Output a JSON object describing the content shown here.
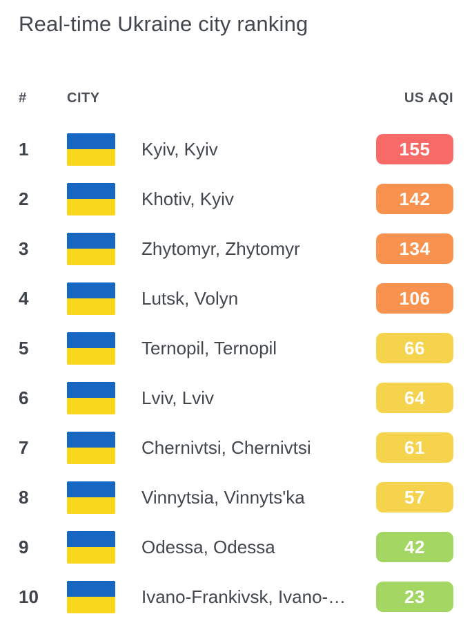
{
  "title": "Real-time Ukraine city ranking",
  "table": {
    "headers": {
      "rank": "#",
      "city": "CITY",
      "aqi": "US AQI"
    },
    "rows": [
      {
        "rank": "1",
        "city": "Kyiv, Kyiv",
        "aqi": "155",
        "level": "unhealthy"
      },
      {
        "rank": "2",
        "city": "Khotiv, Kyiv",
        "aqi": "142",
        "level": "usg"
      },
      {
        "rank": "3",
        "city": "Zhytomyr, Zhytomyr",
        "aqi": "134",
        "level": "usg"
      },
      {
        "rank": "4",
        "city": "Lutsk, Volyn",
        "aqi": "106",
        "level": "usg"
      },
      {
        "rank": "5",
        "city": "Ternopil, Ternopil",
        "aqi": "66",
        "level": "moderate"
      },
      {
        "rank": "6",
        "city": "Lviv, Lviv",
        "aqi": "64",
        "level": "moderate"
      },
      {
        "rank": "7",
        "city": "Chernivtsi, Chernivtsi",
        "aqi": "61",
        "level": "moderate"
      },
      {
        "rank": "8",
        "city": "Vinnytsia, Vinnyts'ka",
        "aqi": "57",
        "level": "moderate"
      },
      {
        "rank": "9",
        "city": "Odessa, Odessa",
        "aqi": "42",
        "level": "good"
      },
      {
        "rank": "10",
        "city": "Ivano-Frankivsk, Ivano-…",
        "aqi": "23",
        "level": "good"
      }
    ],
    "aqi_colors": {
      "good": "#a3d662",
      "moderate": "#f5d34c",
      "usg": "#f8924e",
      "unhealthy": "#f76a67"
    },
    "flag_colors": {
      "blue": "#1766c2",
      "yellow": "#f8d71c"
    }
  }
}
